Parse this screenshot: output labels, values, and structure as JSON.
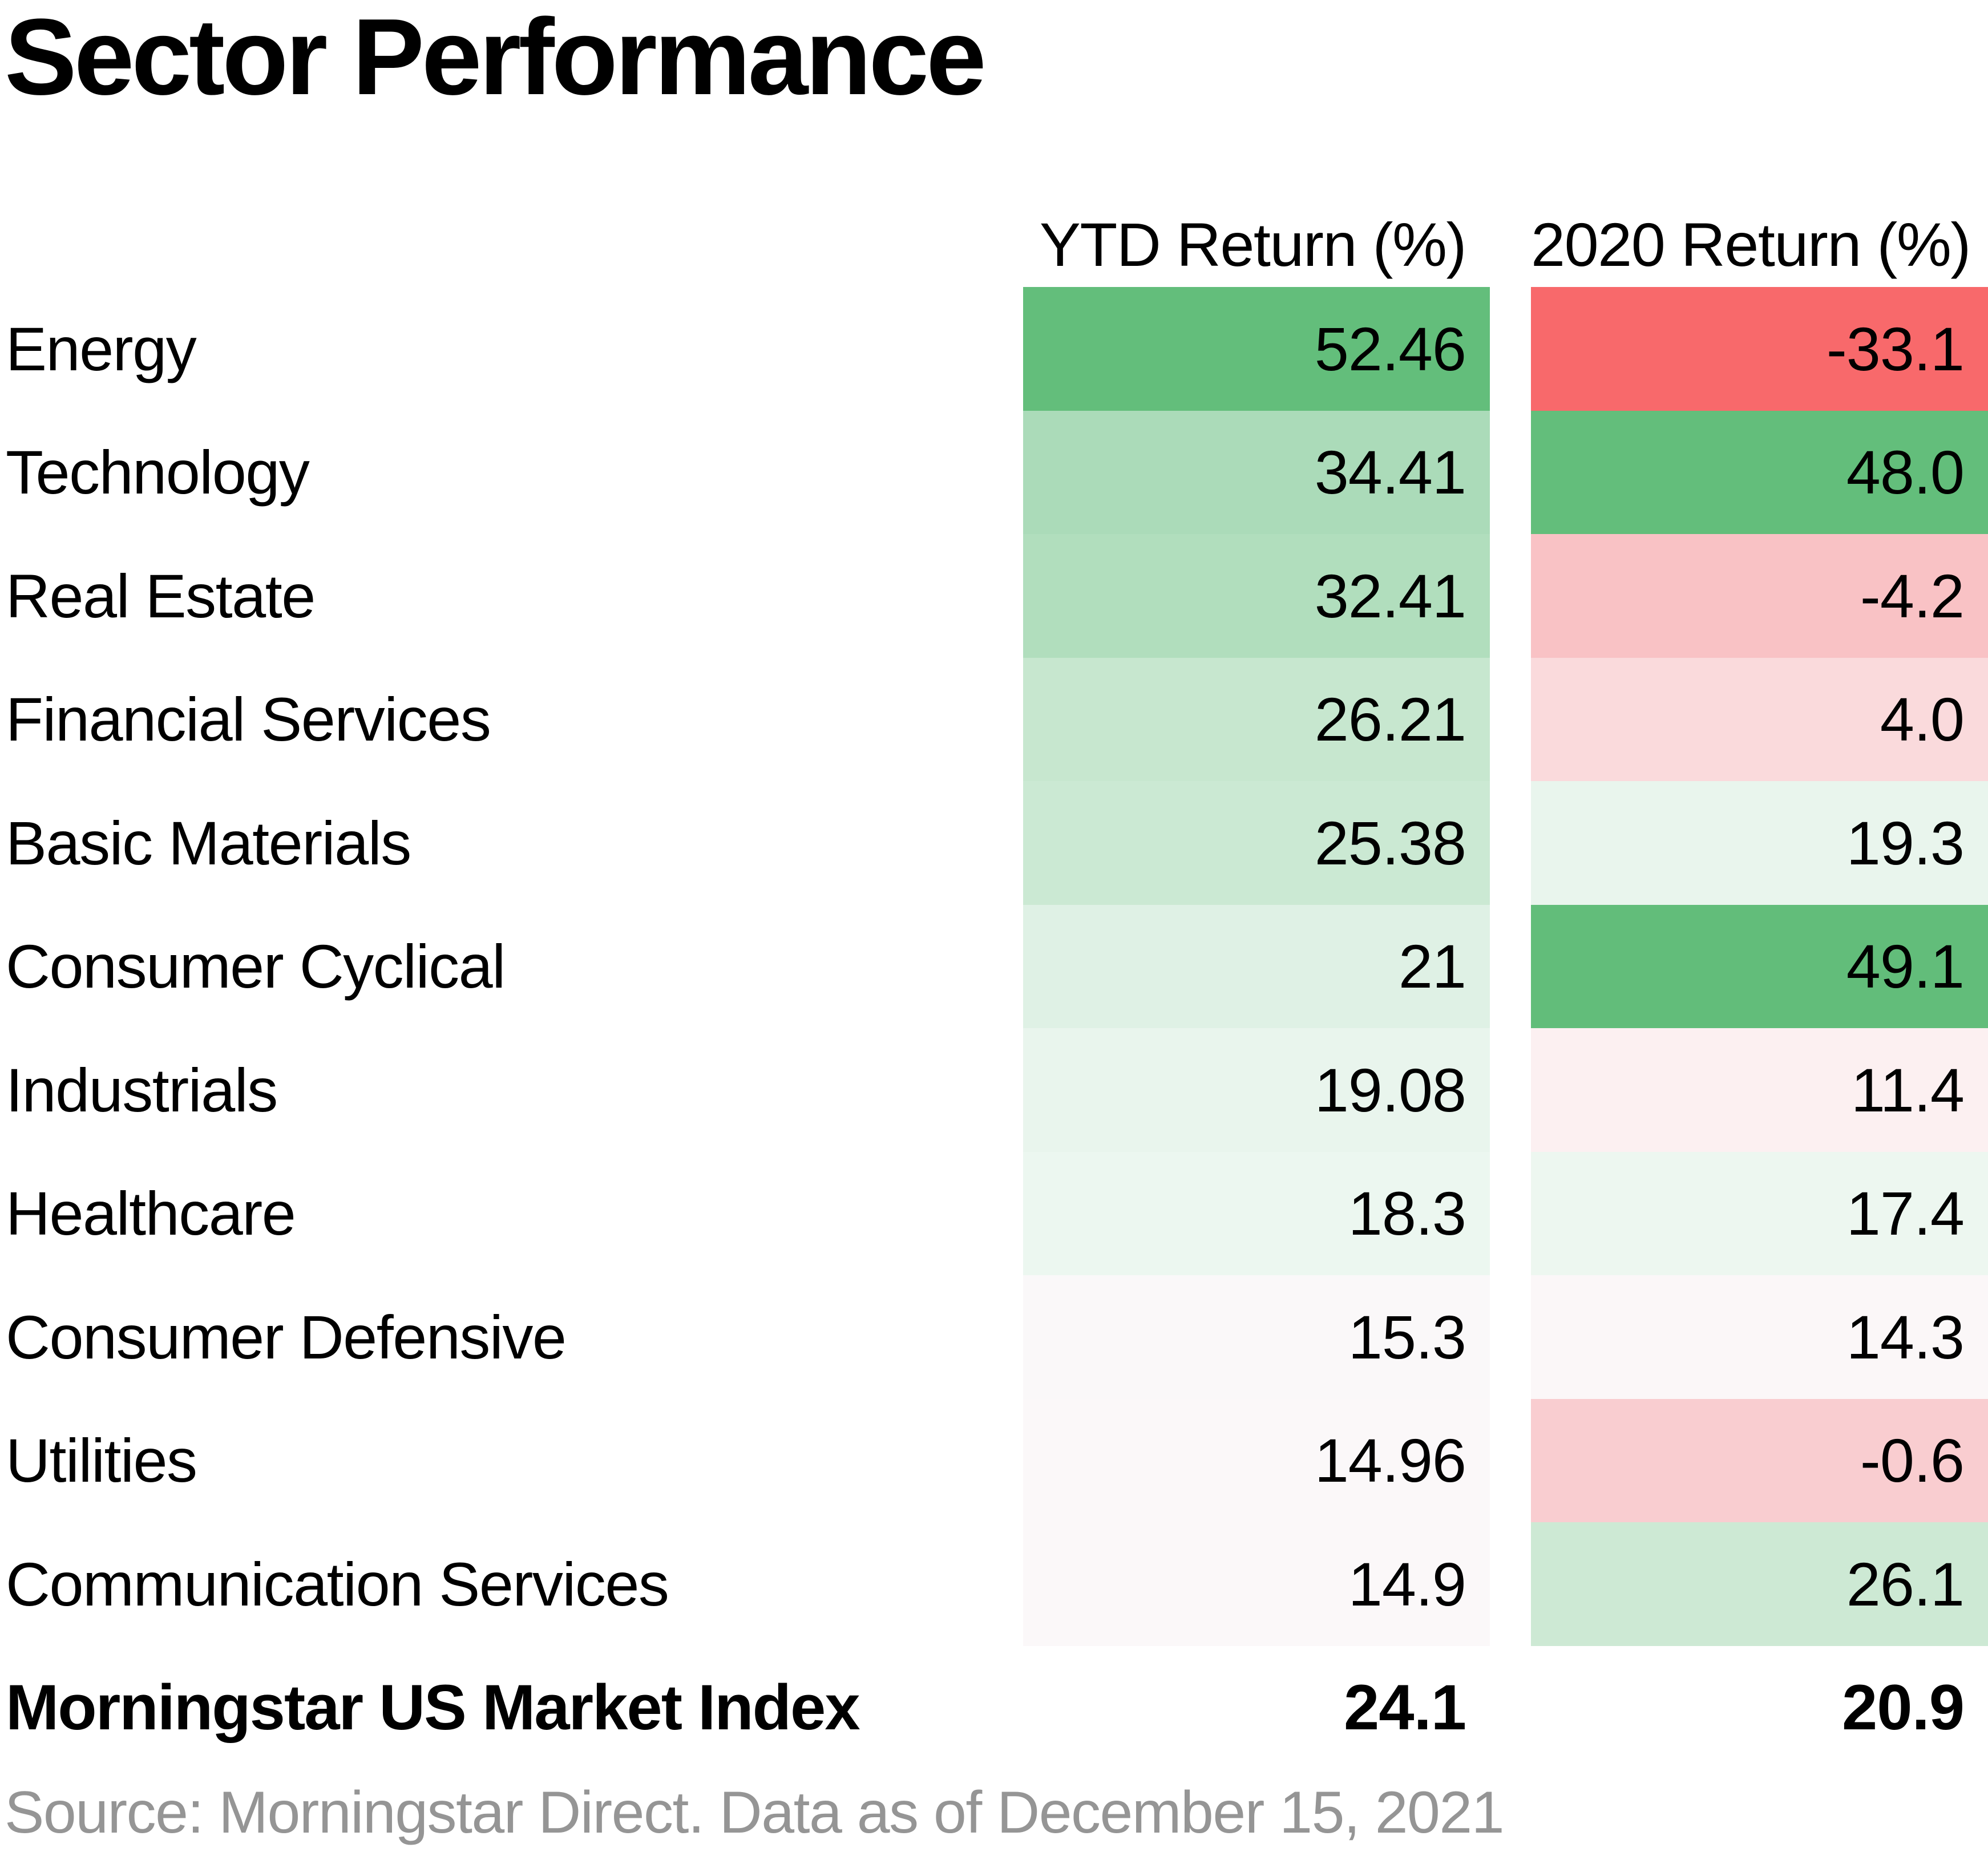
{
  "title": "Sector Performance",
  "columns": [
    {
      "label": "YTD Return (%)"
    },
    {
      "label": "2020 Return (%)"
    }
  ],
  "rows": [
    {
      "sector": "Energy",
      "ytd": "52.46",
      "ytd_color": "#63BE7B",
      "r2020": "-33.1",
      "r2020_color": "#F8696B"
    },
    {
      "sector": "Technology",
      "ytd": "34.41",
      "ytd_color": "#ABDBB9",
      "r2020": "48.0",
      "r2020_color": "#63BE7B"
    },
    {
      "sector": "Real Estate",
      "ytd": "32.41",
      "ytd_color": "#B1DEBD",
      "r2020": "-4.2",
      "r2020_color": "#F9C2C5"
    },
    {
      "sector": "Financial Services",
      "ytd": "26.21",
      "ytd_color": "#C7E7CF",
      "r2020": "4.0",
      "r2020_color": "#FADADC"
    },
    {
      "sector": "Basic Materials",
      "ytd": "25.38",
      "ytd_color": "#CBE9D3",
      "r2020": "19.3",
      "r2020_color": "#E9F5ED"
    },
    {
      "sector": "Consumer Cyclical",
      "ytd": "21",
      "ytd_color": "#DFF1E5",
      "r2020": "49.1",
      "r2020_color": "#62BD7A"
    },
    {
      "sector": "Industrials",
      "ytd": "19.08",
      "ytd_color": "#E9F5ED",
      "r2020": "11.4",
      "r2020_color": "#FCF0F1"
    },
    {
      "sector": "Healthcare",
      "ytd": "18.3",
      "ytd_color": "#ECF7F0",
      "r2020": "17.4",
      "r2020_color": "#EDF7F0"
    },
    {
      "sector": "Consumer Defensive",
      "ytd": "15.3",
      "ytd_color": "#FAF8F9",
      "r2020": "14.3",
      "r2020_color": "#FBF7F8"
    },
    {
      "sector": "Utilities",
      "ytd": "14.96",
      "ytd_color": "#FBF8F9",
      "r2020": "-0.6",
      "r2020_color": "#F9CDD0"
    },
    {
      "sector": "Communication Services",
      "ytd": "14.9",
      "ytd_color": "#FBF8F9",
      "r2020": "26.1",
      "r2020_color": "#CDE9D4"
    }
  ],
  "summary_row": {
    "label": "Morningstar US Market Index",
    "ytd": "24.1",
    "r2020": "20.9"
  },
  "source": "Source: Morningstar Direct. Data as of December 15, 2021",
  "colors": {
    "positive_max": "#63BE7B",
    "negative_max": "#F8696B",
    "midpoint": "#FFFFFF",
    "text": "#000000",
    "source_text": "#959595"
  },
  "chart_data": {
    "type": "heatmap",
    "title": "Sector Performance",
    "categories": [
      "Energy",
      "Technology",
      "Real Estate",
      "Financial Services",
      "Basic Materials",
      "Consumer Cyclical",
      "Industrials",
      "Healthcare",
      "Consumer Defensive",
      "Utilities",
      "Communication Services"
    ],
    "series": [
      {
        "name": "YTD Return (%)",
        "values": [
          52.46,
          34.41,
          32.41,
          26.21,
          25.38,
          21,
          19.08,
          18.3,
          15.3,
          14.96,
          14.9
        ]
      },
      {
        "name": "2020 Return (%)",
        "values": [
          -33.1,
          48.0,
          -4.2,
          4.0,
          19.3,
          49.1,
          11.4,
          17.4,
          14.3,
          -0.6,
          26.1
        ]
      }
    ],
    "summary": {
      "label": "Morningstar US Market Index",
      "values": [
        24.1,
        20.9
      ]
    },
    "color_scale": {
      "min_color": "#F8696B",
      "mid_color": "#FFFFFF",
      "max_color": "#63BE7B",
      "orientation": "red negative / white mid / green positive"
    },
    "legend_position": "none",
    "grid": false,
    "source": "Source: Morningstar Direct. Data as of December 15, 2021"
  }
}
